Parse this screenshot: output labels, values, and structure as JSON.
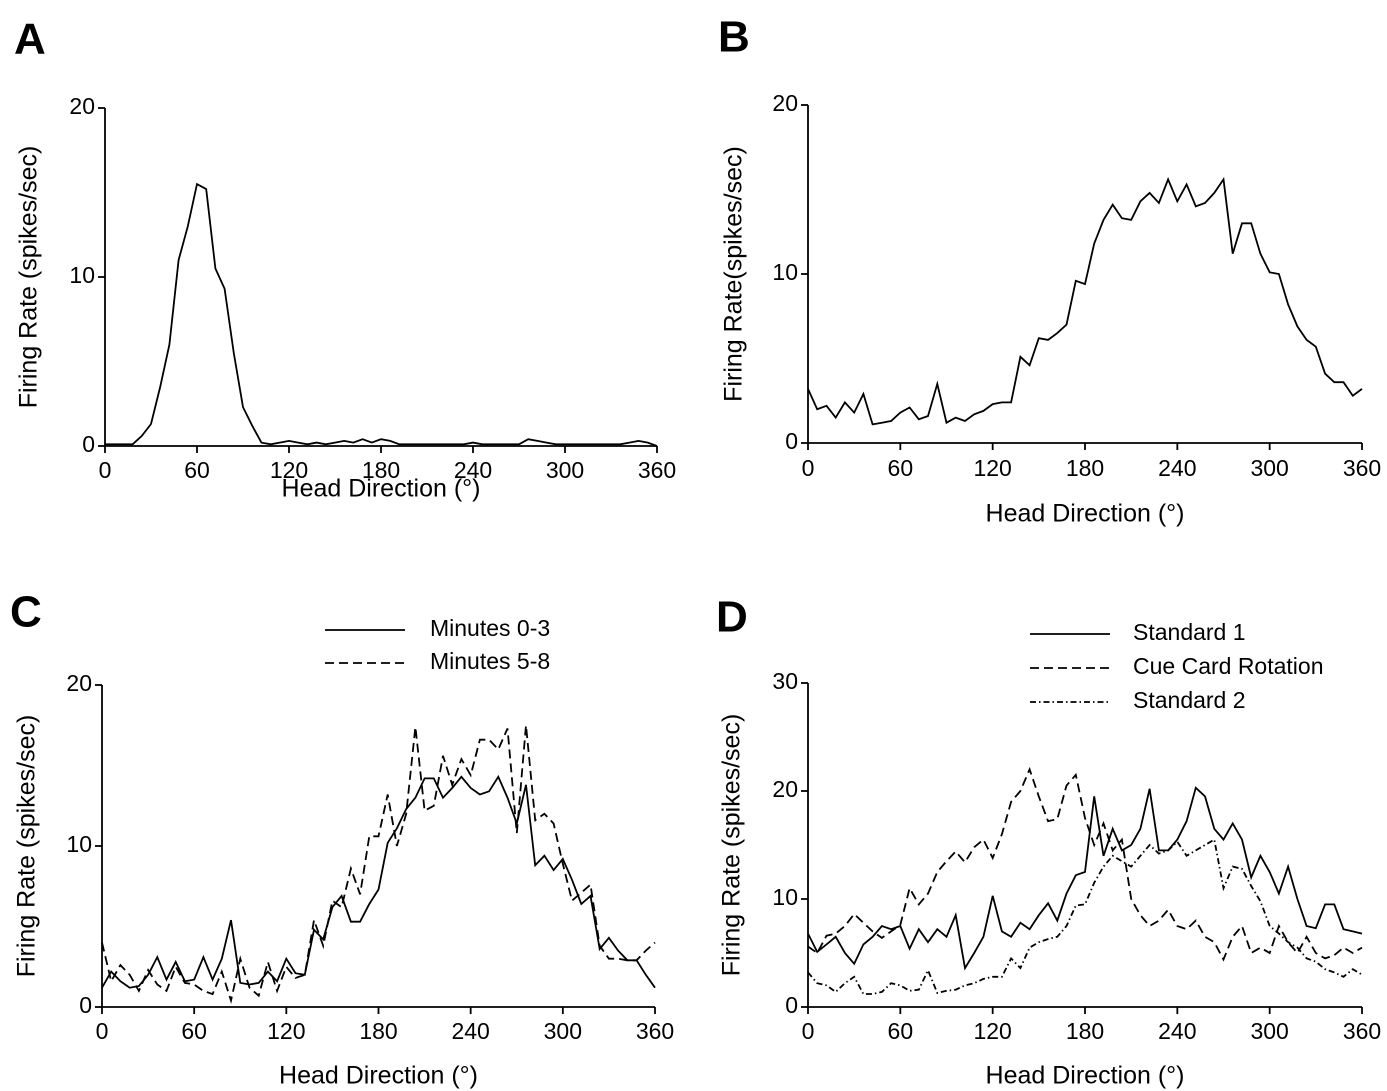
{
  "chart_data": [
    {
      "type": "line",
      "title": "A",
      "ylabel": "Firing Rate (spikes/sec)",
      "xlabel": "Head Direction (°)",
      "color": "#000000",
      "x": [
        0,
        6,
        12,
        18,
        24,
        30,
        36,
        42,
        48,
        54,
        60,
        66,
        72,
        78,
        84,
        90,
        96,
        102,
        108,
        114,
        120,
        126,
        132,
        138,
        144,
        150,
        156,
        162,
        168,
        174,
        180,
        186,
        192,
        198,
        204,
        210,
        216,
        222,
        228,
        234,
        240,
        246,
        252,
        258,
        264,
        270,
        276,
        282,
        288,
        294,
        300,
        306,
        312,
        318,
        324,
        330,
        336,
        342,
        348,
        354,
        360
      ],
      "values": [
        0.1,
        0.1,
        0.1,
        0.1,
        0.6,
        1.3,
        3.5,
        6.0,
        11.0,
        13.0,
        15.5,
        15.2,
        10.5,
        9.3,
        5.5,
        2.3,
        1.2,
        0.2,
        0.1,
        0.2,
        0.3,
        0.2,
        0.1,
        0.2,
        0.1,
        0.2,
        0.3,
        0.2,
        0.4,
        0.2,
        0.4,
        0.3,
        0.1,
        0.1,
        0.1,
        0.1,
        0.1,
        0.1,
        0.1,
        0.1,
        0.2,
        0.1,
        0.1,
        0.1,
        0.1,
        0.1,
        0.4,
        0.3,
        0.2,
        0.1,
        0.1,
        0.1,
        0.1,
        0.1,
        0.1,
        0.1,
        0.1,
        0.2,
        0.3,
        0.2,
        0.0
      ],
      "xlim": [
        0,
        360
      ],
      "ylim": [
        0,
        20
      ],
      "xticks": [
        0,
        60,
        120,
        180,
        240,
        300,
        360
      ],
      "yticks": [
        0,
        10,
        20
      ]
    },
    {
      "type": "line",
      "title": "B",
      "ylabel": "Firing Rate(spikes/sec)",
      "xlabel": "Head Direction (°)",
      "color": "#000000",
      "x": [
        0,
        6,
        12,
        18,
        24,
        30,
        36,
        42,
        48,
        54,
        60,
        66,
        72,
        78,
        84,
        90,
        96,
        102,
        108,
        114,
        120,
        126,
        132,
        138,
        144,
        150,
        156,
        162,
        168,
        174,
        180,
        186,
        192,
        198,
        204,
        210,
        216,
        222,
        228,
        234,
        240,
        246,
        252,
        258,
        264,
        270,
        276,
        282,
        288,
        294,
        300,
        306,
        312,
        318,
        324,
        330,
        336,
        342,
        348,
        354,
        360
      ],
      "values": [
        3.2,
        2.0,
        2.2,
        1.5,
        2.4,
        1.8,
        2.9,
        1.1,
        1.2,
        1.3,
        1.8,
        2.1,
        1.4,
        1.6,
        3.5,
        1.2,
        1.5,
        1.3,
        1.7,
        1.9,
        2.3,
        2.4,
        2.4,
        5.1,
        4.6,
        6.2,
        6.1,
        6.5,
        7.0,
        9.6,
        9.4,
        11.8,
        13.2,
        14.1,
        13.3,
        13.2,
        14.3,
        14.8,
        14.2,
        15.6,
        14.3,
        15.3,
        14.0,
        14.2,
        14.8,
        15.6,
        11.2,
        13.0,
        13.0,
        11.2,
        10.1,
        10.0,
        8.2,
        6.9,
        6.1,
        5.7,
        4.1,
        3.6,
        3.6,
        2.8,
        3.2
      ],
      "xlim": [
        0,
        360
      ],
      "ylim": [
        0,
        20
      ],
      "xticks": [
        0,
        60,
        120,
        180,
        240,
        300,
        360
      ],
      "yticks": [
        0,
        10,
        20
      ]
    },
    {
      "type": "line",
      "title": "C",
      "ylabel": "Firing Rate (spikes/sec)",
      "xlabel": "Head Direction (°)",
      "x": [
        0,
        6,
        12,
        18,
        24,
        30,
        36,
        42,
        48,
        54,
        60,
        66,
        72,
        78,
        84,
        90,
        96,
        102,
        108,
        114,
        120,
        126,
        132,
        138,
        144,
        150,
        156,
        162,
        168,
        174,
        180,
        186,
        192,
        198,
        204,
        210,
        216,
        222,
        228,
        234,
        240,
        246,
        252,
        258,
        264,
        270,
        276,
        282,
        288,
        294,
        300,
        306,
        312,
        318,
        324,
        330,
        336,
        342,
        348,
        354,
        360
      ],
      "series": [
        {
          "name": "Minutes 0-3",
          "color": "#000000",
          "dash": "solid",
          "values": [
            1.2,
            2.2,
            1.6,
            1.2,
            1.3,
            2.0,
            3.1,
            1.7,
            2.8,
            1.6,
            1.7,
            3.1,
            1.7,
            3.0,
            5.4,
            1.5,
            1.4,
            1.5,
            2.2,
            1.6,
            3.0,
            2.1,
            2.0,
            4.8,
            4.2,
            6.2,
            6.9,
            5.3,
            5.3,
            6.4,
            7.3,
            10.2,
            11.1,
            12.3,
            13.0,
            14.2,
            14.2,
            13.0,
            13.6,
            14.3,
            13.6,
            13.2,
            13.4,
            14.3,
            13.0,
            11.4,
            13.8,
            8.8,
            9.4,
            8.5,
            9.2,
            7.9,
            6.4,
            6.9,
            3.6,
            4.3,
            3.5,
            2.9,
            2.9,
            2.0,
            1.2
          ]
        },
        {
          "name": "Minutes 5-8",
          "color": "#000000",
          "dash": "dashed",
          "values": [
            4.0,
            1.6,
            2.6,
            2.0,
            1.0,
            2.3,
            1.4,
            1.0,
            2.5,
            1.5,
            1.4,
            1.0,
            0.8,
            2.2,
            0.4,
            3.0,
            1.2,
            0.7,
            2.8,
            1.0,
            2.5,
            1.8,
            2.0,
            5.4,
            3.8,
            6.6,
            6.2,
            8.6,
            7.0,
            10.6,
            10.6,
            13.2,
            10.0,
            12.0,
            17.4,
            12.2,
            12.5,
            15.6,
            13.8,
            15.4,
            14.4,
            16.6,
            16.6,
            16.0,
            17.3,
            10.8,
            17.5,
            11.6,
            12.0,
            11.4,
            8.9,
            6.6,
            7.1,
            7.6,
            3.8,
            3.0,
            3.0,
            2.9,
            2.9,
            3.5,
            4.0
          ]
        }
      ],
      "xlim": [
        0,
        360
      ],
      "ylim": [
        0,
        20
      ],
      "xticks": [
        0,
        60,
        120,
        180,
        240,
        300,
        360
      ],
      "yticks": [
        0,
        10,
        20
      ]
    },
    {
      "type": "line",
      "title": "D",
      "ylabel": "Firing Rate (spikes/sec)",
      "xlabel": "Head Direction (°)",
      "x": [
        0,
        6,
        12,
        18,
        24,
        30,
        36,
        42,
        48,
        54,
        60,
        66,
        72,
        78,
        84,
        90,
        96,
        102,
        108,
        114,
        120,
        126,
        132,
        138,
        144,
        150,
        156,
        162,
        168,
        174,
        180,
        186,
        192,
        198,
        204,
        210,
        216,
        222,
        228,
        234,
        240,
        246,
        252,
        258,
        264,
        270,
        276,
        282,
        288,
        294,
        300,
        306,
        312,
        318,
        324,
        330,
        336,
        342,
        348,
        354,
        360
      ],
      "series": [
        {
          "name": "Standard 1",
          "color": "#000000",
          "dash": "solid",
          "values": [
            6.8,
            5.1,
            5.8,
            6.5,
            5.0,
            4.0,
            5.8,
            6.5,
            7.5,
            7.2,
            7.5,
            5.4,
            7.2,
            6.0,
            7.2,
            6.5,
            8.5,
            3.6,
            5.0,
            6.5,
            10.3,
            7.0,
            6.5,
            7.8,
            7.2,
            8.5,
            9.6,
            8.0,
            10.5,
            12.2,
            12.5,
            19.5,
            14.0,
            16.5,
            14.5,
            15.0,
            16.5,
            20.2,
            14.5,
            14.5,
            15.5,
            17.2,
            20.3,
            19.5,
            16.5,
            15.5,
            17.0,
            15.5,
            12.0,
            14.0,
            12.5,
            10.5,
            13.0,
            10.0,
            7.5,
            7.3,
            9.5,
            9.5,
            7.2,
            7.0,
            6.8
          ]
        },
        {
          "name": "Cue Card Rotation",
          "color": "#000000",
          "dash": "dashed",
          "values": [
            5.6,
            5.0,
            6.6,
            6.8,
            7.5,
            8.6,
            7.8,
            7.0,
            6.4,
            7.0,
            7.6,
            11.0,
            9.5,
            10.5,
            12.5,
            13.5,
            14.4,
            13.4,
            14.8,
            15.5,
            13.8,
            16.0,
            19.0,
            20.0,
            22.0,
            19.5,
            17.2,
            17.4,
            20.5,
            21.5,
            17.5,
            15.0,
            17.0,
            14.5,
            15.5,
            10.0,
            8.5,
            7.5,
            8.0,
            9.0,
            7.5,
            7.2,
            8.0,
            6.5,
            6.0,
            4.4,
            6.5,
            7.5,
            5.0,
            5.5,
            5.0,
            7.5,
            6.0,
            5.0,
            6.5,
            5.0,
            4.5,
            4.8,
            5.5,
            5.0,
            5.5
          ]
        },
        {
          "name": "Standard 2",
          "color": "#000000",
          "dash": "dashdot",
          "values": [
            3.2,
            2.2,
            2.0,
            1.4,
            2.2,
            2.8,
            1.2,
            1.2,
            1.4,
            2.2,
            2.0,
            1.5,
            1.6,
            3.4,
            1.3,
            1.5,
            1.6,
            2.0,
            2.2,
            2.6,
            2.8,
            2.8,
            4.5,
            3.6,
            5.5,
            6.0,
            6.3,
            6.5,
            7.5,
            9.4,
            9.5,
            11.5,
            13.0,
            14.0,
            13.5,
            13.0,
            14.0,
            15.0,
            14.2,
            14.5,
            15.3,
            14.0,
            14.5,
            15.0,
            15.5,
            11.0,
            13.0,
            12.8,
            11.2,
            9.8,
            7.5,
            6.8,
            6.0,
            5.5,
            4.5,
            4.2,
            3.5,
            3.2,
            2.8,
            3.5,
            3.0
          ]
        }
      ],
      "xlim": [
        0,
        360
      ],
      "ylim": [
        0,
        30
      ],
      "xticks": [
        0,
        60,
        120,
        180,
        240,
        300,
        360
      ],
      "yticks": [
        0,
        10,
        20,
        30
      ]
    }
  ]
}
